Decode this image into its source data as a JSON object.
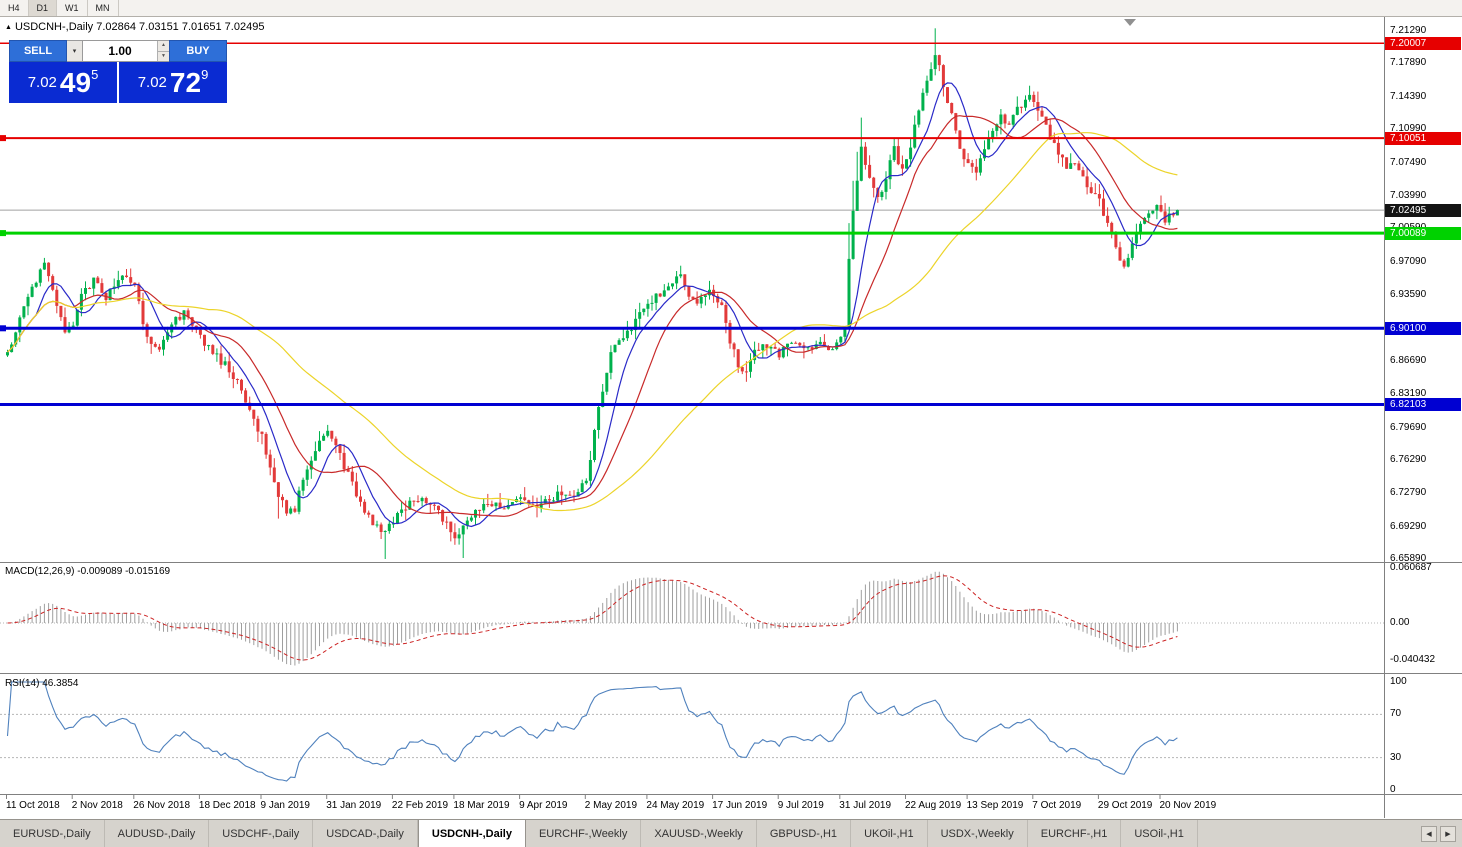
{
  "icons": {
    "title_marker": "▲",
    "chevron_down": "▾",
    "spin_up": "▲",
    "spin_down": "▼",
    "tab_scroll_left": "◀",
    "tab_scroll_right": "▶"
  },
  "toolbar": {
    "timeframes": [
      "H4",
      "D1",
      "W1",
      "MN"
    ],
    "active": "D1"
  },
  "chart": {
    "symbol": "USDCNH-",
    "period": "Daily",
    "title_line": "USDCNH-,Daily 7.02864 7.03151 7.01651 7.02495"
  },
  "trade_panel": {
    "sell_label": "SELL",
    "buy_label": "BUY",
    "volume": "1.00",
    "sell": {
      "base": "7.02",
      "pips": "49",
      "point": "5"
    },
    "buy": {
      "base": "7.02",
      "pips": "72",
      "point": "9"
    }
  },
  "price_axis": {
    "labels": [
      "7.21290",
      "7.17890",
      "7.14390",
      "7.10990",
      "7.07490",
      "7.03990",
      "7.00590",
      "6.97090",
      "6.93590",
      "6.90190",
      "6.86690",
      "6.83190",
      "6.79690",
      "6.76290",
      "6.72790",
      "6.69290",
      "6.65890"
    ]
  },
  "levels": [
    {
      "label": "7.20007",
      "price": 7.20007,
      "color": "#e60000",
      "width": 1.5,
      "anchor": false
    },
    {
      "label": "7.10051",
      "price": 7.10051,
      "color": "#e60000",
      "width": 2,
      "anchor": true
    },
    {
      "label": "7.00089",
      "price": 7.00089,
      "color": "#00d200",
      "width": 3,
      "anchor": true
    },
    {
      "label": "6.90100",
      "price": 6.901,
      "color": "#0000d2",
      "width": 3,
      "anchor": true
    },
    {
      "label": "6.82103",
      "price": 6.82103,
      "color": "#0000d2",
      "width": 3,
      "anchor": false
    }
  ],
  "current_price": {
    "label": "7.02495",
    "price": 7.02495,
    "badge_color": "#141414",
    "line_color": "#a0a0a0"
  },
  "macd_panel": {
    "name": "MACD(12,26,9)",
    "values": "-0.009089 -0.015169",
    "scale": [
      "0.060687",
      "0.00",
      "-0.040432"
    ]
  },
  "rsi_panel": {
    "name": "RSI(14)",
    "value": "46.3854",
    "scale": [
      "100",
      "70",
      "30",
      "0"
    ]
  },
  "date_axis": [
    {
      "label": "11 Oct 2018",
      "i": 0
    },
    {
      "label": "2 Nov 2018",
      "i": 16
    },
    {
      "label": "26 Nov 2018",
      "i": 31
    },
    {
      "label": "18 Dec 2018",
      "i": 47
    },
    {
      "label": "9 Jan 2019",
      "i": 62
    },
    {
      "label": "31 Jan 2019",
      "i": 78
    },
    {
      "label": "22 Feb 2019",
      "i": 94
    },
    {
      "label": "18 Mar 2019",
      "i": 109
    },
    {
      "label": "9 Apr 2019",
      "i": 125
    },
    {
      "label": "2 May 2019",
      "i": 141
    },
    {
      "label": "24 May 2019",
      "i": 156
    },
    {
      "label": "17 Jun 2019",
      "i": 172
    },
    {
      "label": "9 Jul 2019",
      "i": 188
    },
    {
      "label": "31 Jul 2019",
      "i": 203
    },
    {
      "label": "22 Aug 2019",
      "i": 219
    },
    {
      "label": "13 Sep 2019",
      "i": 234
    },
    {
      "label": "7 Oct 2019",
      "i": 250
    },
    {
      "label": "29 Oct 2019",
      "i": 266
    },
    {
      "label": "20 Nov 2019",
      "i": 281
    }
  ],
  "bottom_tabs": {
    "tabs": [
      "EURUSD-,Daily",
      "AUDUSD-,Daily",
      "USDCHF-,Daily",
      "USDCAD-,Daily",
      "USDCNH-,Daily",
      "EURCHF-,Weekly",
      "XAUUSD-,Weekly",
      "GBPUSD-,H1",
      "UKOil-,H1",
      "USDX-,Weekly",
      "EURCHF-,H1",
      "USOil-,H1"
    ],
    "active_index": 4
  },
  "chart_data": {
    "type": "candlestick",
    "symbol": "USDCNH",
    "timeframe": "Daily",
    "ohlc": {
      "open": 7.02864,
      "high": 7.03151,
      "low": 7.01651,
      "close": 7.02495
    },
    "bid": 7.02495,
    "ask": 7.02729,
    "y_axis_range": [
      6.6589,
      7.2129
    ],
    "num_candles": 286,
    "price_path_keypoints": [
      [
        0,
        6.875
      ],
      [
        3,
        6.912
      ],
      [
        6,
        6.946
      ],
      [
        9,
        6.966
      ],
      [
        11,
        6.94
      ],
      [
        14,
        6.896
      ],
      [
        16,
        6.902
      ],
      [
        18,
        6.936
      ],
      [
        21,
        6.95
      ],
      [
        24,
        6.934
      ],
      [
        28,
        6.956
      ],
      [
        31,
        6.944
      ],
      [
        34,
        6.89
      ],
      [
        37,
        6.876
      ],
      [
        40,
        6.906
      ],
      [
        43,
        6.916
      ],
      [
        47,
        6.892
      ],
      [
        50,
        6.876
      ],
      [
        53,
        6.862
      ],
      [
        56,
        6.846
      ],
      [
        59,
        6.812
      ],
      [
        62,
        6.786
      ],
      [
        64,
        6.756
      ],
      [
        66,
        6.728
      ],
      [
        68,
        6.706
      ],
      [
        70,
        6.712
      ],
      [
        72,
        6.746
      ],
      [
        75,
        6.776
      ],
      [
        78,
        6.796
      ],
      [
        80,
        6.776
      ],
      [
        83,
        6.746
      ],
      [
        86,
        6.716
      ],
      [
        89,
        6.698
      ],
      [
        92,
        6.688
      ],
      [
        95,
        6.706
      ],
      [
        98,
        6.716
      ],
      [
        101,
        6.722
      ],
      [
        104,
        6.712
      ],
      [
        107,
        6.694
      ],
      [
        109,
        6.684
      ],
      [
        111,
        6.694
      ],
      [
        114,
        6.712
      ],
      [
        117,
        6.718
      ],
      [
        120,
        6.712
      ],
      [
        123,
        6.718
      ],
      [
        126,
        6.722
      ],
      [
        129,
        6.714
      ],
      [
        132,
        6.722
      ],
      [
        135,
        6.73
      ],
      [
        138,
        6.724
      ],
      [
        141,
        6.74
      ],
      [
        143,
        6.792
      ],
      [
        145,
        6.836
      ],
      [
        147,
        6.872
      ],
      [
        149,
        6.89
      ],
      [
        152,
        6.902
      ],
      [
        155,
        6.92
      ],
      [
        158,
        6.933
      ],
      [
        161,
        6.943
      ],
      [
        164,
        6.956
      ],
      [
        166,
        6.938
      ],
      [
        168,
        6.925
      ],
      [
        170,
        6.936
      ],
      [
        172,
        6.938
      ],
      [
        174,
        6.922
      ],
      [
        176,
        6.888
      ],
      [
        178,
        6.862
      ],
      [
        180,
        6.854
      ],
      [
        182,
        6.874
      ],
      [
        184,
        6.884
      ],
      [
        186,
        6.878
      ],
      [
        188,
        6.874
      ],
      [
        191,
        6.884
      ],
      [
        194,
        6.879
      ],
      [
        197,
        6.884
      ],
      [
        200,
        6.879
      ],
      [
        203,
        6.888
      ],
      [
        204,
        6.902
      ],
      [
        205,
        6.975
      ],
      [
        206,
        7.02
      ],
      [
        207,
        7.06
      ],
      [
        208,
        7.095
      ],
      [
        210,
        7.058
      ],
      [
        212,
        7.036
      ],
      [
        214,
        7.058
      ],
      [
        216,
        7.088
      ],
      [
        218,
        7.064
      ],
      [
        220,
        7.092
      ],
      [
        222,
        7.13
      ],
      [
        224,
        7.164
      ],
      [
        226,
        7.19
      ],
      [
        228,
        7.158
      ],
      [
        230,
        7.124
      ],
      [
        232,
        7.092
      ],
      [
        234,
        7.072
      ],
      [
        236,
        7.062
      ],
      [
        238,
        7.09
      ],
      [
        240,
        7.11
      ],
      [
        242,
        7.124
      ],
      [
        244,
        7.114
      ],
      [
        246,
        7.13
      ],
      [
        248,
        7.144
      ],
      [
        250,
        7.14
      ],
      [
        252,
        7.124
      ],
      [
        254,
        7.1
      ],
      [
        256,
        7.086
      ],
      [
        258,
        7.072
      ],
      [
        260,
        7.076
      ],
      [
        262,
        7.06
      ],
      [
        264,
        7.042
      ],
      [
        266,
        7.034
      ],
      [
        268,
        7.01
      ],
      [
        270,
        6.986
      ],
      [
        272,
        6.963
      ],
      [
        274,
        6.99
      ],
      [
        276,
        7.01
      ],
      [
        278,
        7.022
      ],
      [
        280,
        7.028
      ],
      [
        282,
        7.016
      ],
      [
        285,
        7.025
      ]
    ],
    "long_upper_wick_indices": [
      205,
      206,
      207,
      208,
      226
    ],
    "long_lower_wick_indices": [
      66,
      92,
      111
    ],
    "colors": {
      "bull": "#00b14c",
      "bear": "#e23a3a"
    },
    "moving_averages": [
      {
        "period": 8,
        "color": "#2a2ac8"
      },
      {
        "period": 17,
        "color": "#c82a2a"
      },
      {
        "period": 50,
        "color": "#ecd42a"
      }
    ],
    "indicators": {
      "macd": {
        "fast": 12,
        "slow": 26,
        "signal": 9,
        "main": -0.009089,
        "signal_value": -0.015169,
        "scale_max": 0.060687,
        "scale_min": -0.040432,
        "histogram_color": "#9e9e9e",
        "signal_color": "#cc2222"
      },
      "rsi": {
        "period": 14,
        "value": 46.3854,
        "levels": [
          70,
          30
        ],
        "line_color": "#4f81bd"
      }
    },
    "horizontal_levels": [
      7.20007,
      7.10051,
      7.00089,
      6.901,
      6.82103
    ]
  }
}
